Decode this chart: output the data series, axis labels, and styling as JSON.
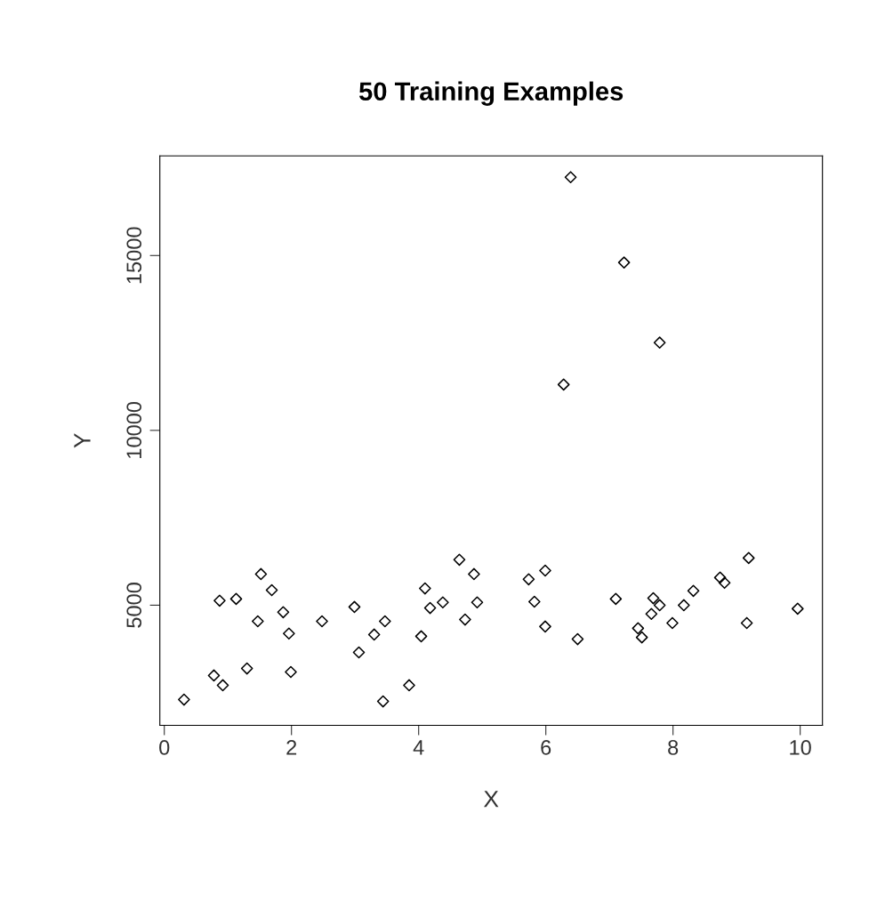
{
  "chart_data": {
    "type": "scatter",
    "title": "50 Training Examples",
    "xlabel": "X",
    "ylabel": "Y",
    "x": [
      0.31,
      0.78,
      0.87,
      0.92,
      1.13,
      1.3,
      1.47,
      1.52,
      1.69,
      1.87,
      1.96,
      1.99,
      2.48,
      2.99,
      3.06,
      3.3,
      3.44,
      3.47,
      3.85,
      4.04,
      4.1,
      4.18,
      4.38,
      4.64,
      4.73,
      4.87,
      4.92,
      5.73,
      5.82,
      5.99,
      5.99,
      6.5,
      6.28,
      6.39,
      7.1,
      7.23,
      7.45,
      7.51,
      7.66,
      7.69,
      7.79,
      7.79,
      7.99,
      8.17,
      8.32,
      8.74,
      8.81,
      9.19,
      9.16,
      9.96
    ],
    "series": [
      {
        "color": "#000000",
        "values": [
          2300,
          2990,
          5130,
          2710,
          5180,
          3190,
          4540,
          5890,
          5430,
          4800,
          4190,
          3090,
          4540,
          4950,
          3650,
          4160,
          2250,
          4540,
          2710,
          4110,
          5480,
          4920,
          5080,
          6300,
          4590,
          5890,
          5080,
          5740,
          5100,
          5990,
          4390,
          4030,
          11310,
          17240,
          5180,
          14800,
          4340,
          4080,
          4750,
          5200,
          5000,
          12510,
          4490,
          5000,
          5410,
          5790,
          5640,
          6350,
          4490,
          4900
        ]
      }
    ],
    "xlim": [
      -0.07,
      10.35
    ],
    "ylim": [
      1565,
      17850
    ],
    "xticks": [
      0,
      2,
      4,
      6,
      8,
      10
    ],
    "yticks": [
      5000,
      10000,
      15000
    ],
    "marker": "diamond",
    "grid": false,
    "legend": false
  }
}
